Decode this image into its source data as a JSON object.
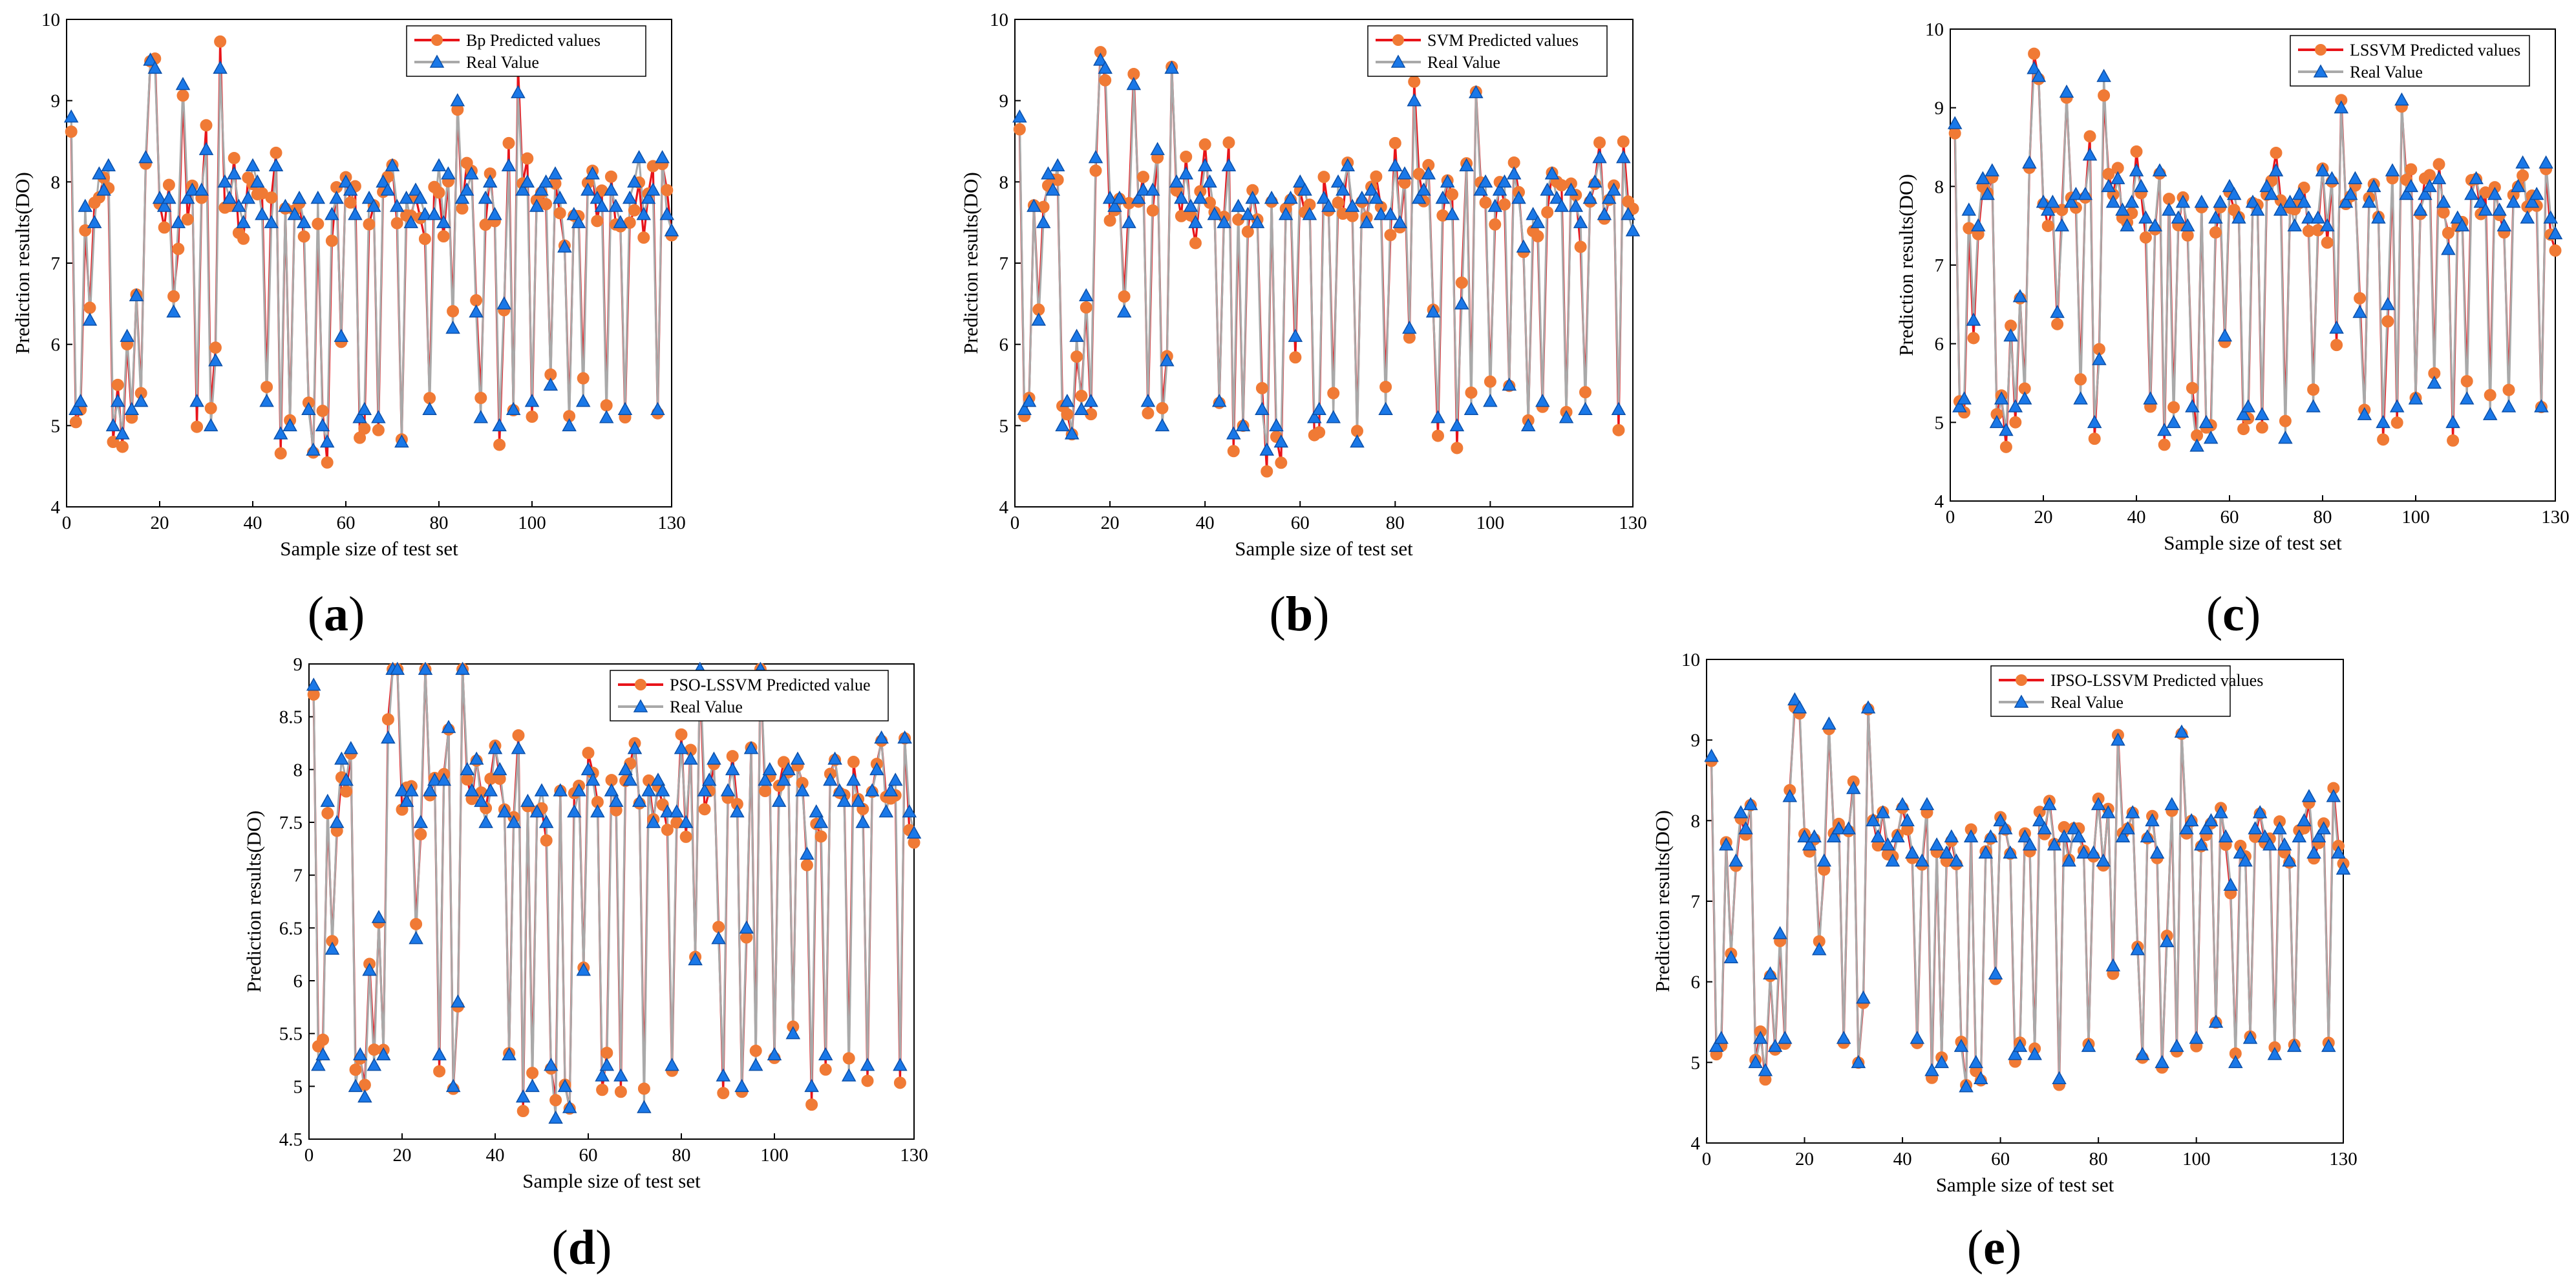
{
  "colors": {
    "predicted_line": "#e8141a",
    "predicted_marker": "#f07a35",
    "real_line": "#a9a9a9",
    "real_marker": "#1a78e8",
    "axis": "#000000"
  },
  "chart_data": [
    {
      "type": "line",
      "panel_label": "(a)",
      "label_open": "(",
      "label_letter": "a",
      "label_close": ")",
      "xlabel": "Sample size of test set",
      "ylabel": "Prediction results(DO)",
      "xlim": [
        0,
        130
      ],
      "ylim": [
        4,
        10
      ],
      "xticks": [
        0,
        20,
        40,
        60,
        80,
        100,
        130
      ],
      "yticks": [
        4,
        5,
        6,
        7,
        8,
        9,
        10
      ],
      "grid": false,
      "legend_position": "top-right",
      "series": [
        {
          "name": "Bp Predicted values",
          "role": "predicted",
          "seed": 11,
          "noise": 0.35
        },
        {
          "name": "Real Value",
          "role": "real"
        }
      ]
    },
    {
      "type": "line",
      "panel_label": "(b)",
      "label_open": "(",
      "label_letter": "b",
      "label_close": ")",
      "xlabel": "Sample size of test set",
      "ylabel": "Prediction results(DO)",
      "xlim": [
        0,
        130
      ],
      "ylim": [
        4,
        10
      ],
      "xticks": [
        0,
        20,
        40,
        60,
        80,
        100,
        130
      ],
      "yticks": [
        4,
        5,
        6,
        7,
        8,
        9,
        10
      ],
      "grid": false,
      "legend_position": "top-right",
      "series": [
        {
          "name": "SVM Predicted values",
          "role": "predicted",
          "seed": 23,
          "noise": 0.3
        },
        {
          "name": "Real Value",
          "role": "real"
        }
      ]
    },
    {
      "type": "line",
      "panel_label": "(c)",
      "label_open": "(",
      "label_letter": "c",
      "label_close": ")",
      "xlabel": "Sample size of test set",
      "ylabel": "Prediction results(DO)",
      "xlim": [
        0,
        130
      ],
      "ylim": [
        4,
        10
      ],
      "xticks": [
        0,
        20,
        40,
        60,
        80,
        100,
        130
      ],
      "yticks": [
        4,
        5,
        6,
        7,
        8,
        9,
        10
      ],
      "grid": false,
      "legend_position": "top-right",
      "series": [
        {
          "name": "LSSVM Predicted values",
          "role": "predicted",
          "seed": 37,
          "noise": 0.25
        },
        {
          "name": "Real Value",
          "role": "real"
        }
      ]
    },
    {
      "type": "line",
      "panel_label": "(d)",
      "label_open": "(",
      "label_letter": "d",
      "label_close": ")",
      "xlabel": "Sample size of test set",
      "ylabel": "Prediction results(DO)",
      "xlim": [
        0,
        130
      ],
      "ylim": [
        4.5,
        9
      ],
      "xticks": [
        0,
        20,
        40,
        60,
        80,
        100,
        130
      ],
      "yticks": [
        4.5,
        5,
        5.5,
        6,
        6.5,
        7,
        7.5,
        8,
        8.5,
        9
      ],
      "grid": false,
      "legend_position": "top-right",
      "series": [
        {
          "name": "PSO-LSSVM Predicted value",
          "role": "predicted",
          "seed": 41,
          "noise": 0.18
        },
        {
          "name": "Real Value",
          "role": "real"
        }
      ]
    },
    {
      "type": "line",
      "panel_label": "(e)",
      "label_open": "(",
      "label_letter": "e",
      "label_close": ")",
      "xlabel": "Sample size of test set",
      "ylabel": "Prediction results(DO)",
      "xlim": [
        0,
        130
      ],
      "ylim": [
        4,
        10
      ],
      "xticks": [
        0,
        20,
        40,
        60,
        80,
        100,
        130
      ],
      "yticks": [
        4,
        5,
        6,
        7,
        8,
        9,
        10
      ],
      "grid": false,
      "legend_position": "top-left",
      "series": [
        {
          "name": "IPSO-LSSVM Predicted values",
          "role": "predicted",
          "seed": 53,
          "noise": 0.12
        },
        {
          "name": "Real Value",
          "role": "real"
        }
      ]
    }
  ],
  "real_values": [
    8.8,
    5.2,
    5.3,
    7.7,
    6.3,
    7.5,
    8.1,
    7.9,
    8.2,
    5.0,
    5.3,
    4.9,
    6.1,
    5.2,
    6.6,
    5.3,
    8.3,
    9.5,
    9.4,
    7.8,
    7.7,
    7.8,
    6.4,
    7.5,
    9.2,
    7.8,
    7.9,
    5.3,
    7.9,
    8.4,
    5.0,
    5.8,
    9.4,
    8.0,
    7.8,
    8.1,
    7.7,
    7.5,
    7.8,
    8.2,
    8.0,
    7.6,
    5.3,
    7.5,
    8.2,
    4.9,
    7.7,
    5.0,
    7.6,
    7.8,
    7.5,
    5.2,
    4.7,
    7.8,
    5.0,
    4.8,
    7.6,
    7.8,
    6.1,
    8.0,
    7.9,
    7.6,
    5.1,
    5.2,
    7.8,
    7.7,
    5.1,
    8.0,
    7.9,
    8.2,
    7.7,
    4.8,
    7.8,
    7.5,
    7.9,
    7.8,
    7.6,
    5.2,
    7.6,
    8.2,
    7.5,
    8.1,
    6.2,
    9.0,
    7.8,
    7.9,
    8.1,
    6.4,
    5.1,
    7.8,
    8.0,
    7.6,
    5.0,
    6.5,
    8.2,
    5.2,
    9.1,
    7.9,
    8.0,
    5.3,
    7.7,
    7.9,
    8.0,
    5.5,
    8.1,
    7.8,
    7.2,
    5.0,
    7.6,
    7.5,
    5.3,
    7.9,
    8.1,
    7.8,
    7.7,
    5.1,
    7.9,
    7.7,
    7.5,
    5.2,
    7.8,
    8.0,
    8.3,
    7.6,
    7.8,
    7.9,
    5.2,
    8.3,
    7.6,
    7.4
  ]
}
